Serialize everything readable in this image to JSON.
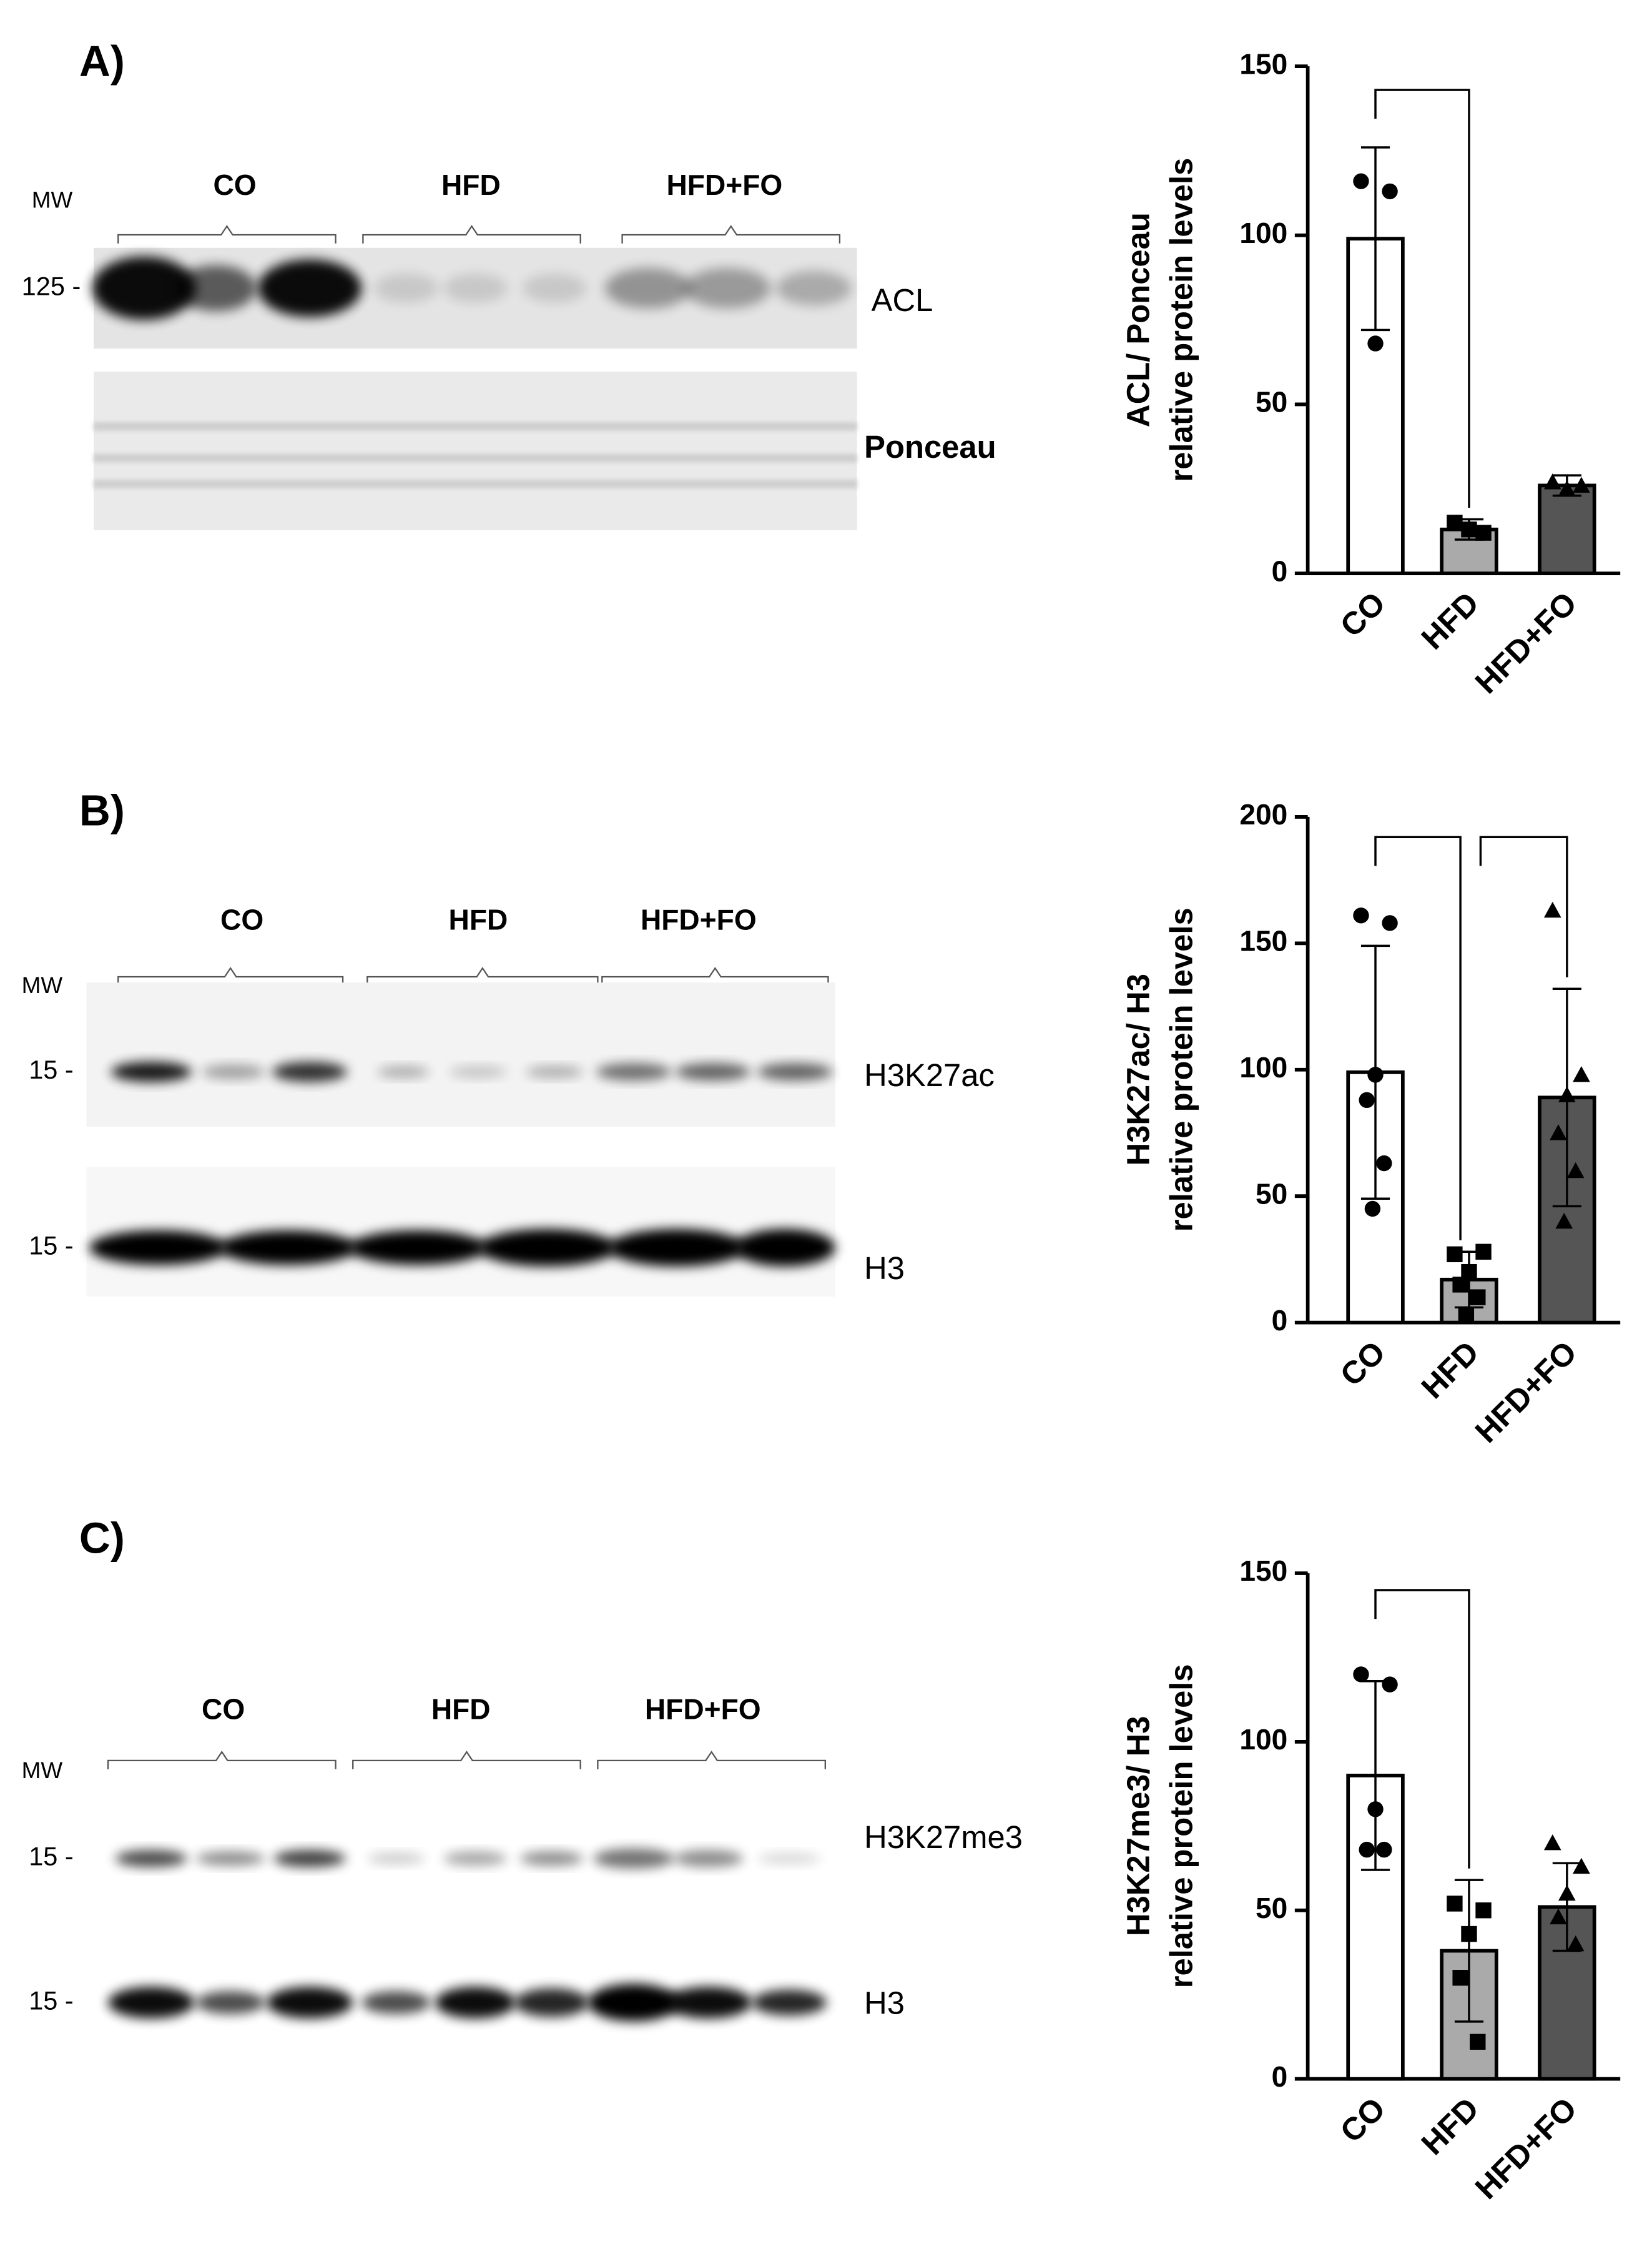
{
  "blots": [
    {
      "label": "A)",
      "mw": "MW",
      "groups": [
        "CO",
        "HFD",
        "HFD+FO"
      ],
      "strips": [
        {
          "marker": "125 -",
          "name": "ACL"
        },
        {
          "name": "Ponceau"
        }
      ]
    },
    {
      "label": "B)",
      "mw": "MW",
      "groups": [
        "CO",
        "HFD",
        "HFD+FO"
      ],
      "strips": [
        {
          "marker": "15 -",
          "name": "H3K27ac"
        },
        {
          "marker": "15 -",
          "name": "H3"
        }
      ]
    },
    {
      "label": "C)",
      "mw": "MW",
      "groups": [
        "CO",
        "HFD",
        "HFD+FO"
      ],
      "strips": [
        {
          "marker": "15 -",
          "name": "H3K27me3"
        },
        {
          "marker": "15 -",
          "name": "H3"
        }
      ]
    }
  ],
  "chart_data": [
    {
      "type": "bar",
      "y_label": [
        "ACL/ Ponceau",
        "relative protein levels"
      ],
      "categories": [
        "CO",
        "HFD",
        "HFD+FO"
      ],
      "values": [
        99,
        13,
        26
      ],
      "errors": [
        27,
        3,
        3
      ],
      "colors": [
        "#ffffff",
        "#aaaaaa",
        "#555555"
      ],
      "markers": [
        "circle",
        "square",
        "triangle"
      ],
      "points": [
        [
          116,
          113,
          68
        ],
        [
          15,
          12,
          13
        ],
        [
          27,
          26,
          25
        ]
      ],
      "ylim": [
        0,
        150
      ],
      "yticks": [
        0,
        50,
        100,
        150
      ],
      "brackets": [
        {
          "from": 0,
          "to": 1,
          "y": 143
        }
      ]
    },
    {
      "type": "bar",
      "y_label": [
        "H3K27ac/ H3",
        "relative protein levels"
      ],
      "categories": [
        "CO",
        "HFD",
        "HFD+FO"
      ],
      "values": [
        99,
        17,
        89
      ],
      "errors": [
        50,
        11,
        43
      ],
      "colors": [
        "#ffffff",
        "#aaaaaa",
        "#555555"
      ],
      "markers": [
        "circle",
        "square",
        "triangle"
      ],
      "points": [
        [
          161,
          158,
          98,
          88,
          63,
          45
        ],
        [
          27,
          28,
          20,
          15,
          10,
          3
        ],
        [
          163,
          98,
          90,
          75,
          60,
          40
        ]
      ],
      "ylim": [
        0,
        200
      ],
      "yticks": [
        0,
        50,
        100,
        150,
        200
      ],
      "brackets": [
        {
          "from": 0,
          "to": 1,
          "y": 192
        },
        {
          "from": 1,
          "to": 2,
          "y": 192
        }
      ]
    },
    {
      "type": "bar",
      "y_label": [
        "H3K27me3/ H3",
        "relative protein levels"
      ],
      "categories": [
        "CO",
        "HFD",
        "HFD+FO"
      ],
      "values": [
        90,
        38,
        51
      ],
      "errors": [
        28,
        21,
        13
      ],
      "colors": [
        "#ffffff",
        "#aaaaaa",
        "#555555"
      ],
      "markers": [
        "circle",
        "square",
        "triangle"
      ],
      "points": [
        [
          120,
          117,
          80,
          68,
          68
        ],
        [
          52,
          50,
          43,
          30,
          11
        ],
        [
          70,
          63,
          55,
          48,
          40
        ]
      ],
      "ylim": [
        0,
        150
      ],
      "yticks": [
        0,
        50,
        100,
        150
      ],
      "brackets": [
        {
          "from": 0,
          "to": 1,
          "y": 145
        }
      ]
    }
  ]
}
